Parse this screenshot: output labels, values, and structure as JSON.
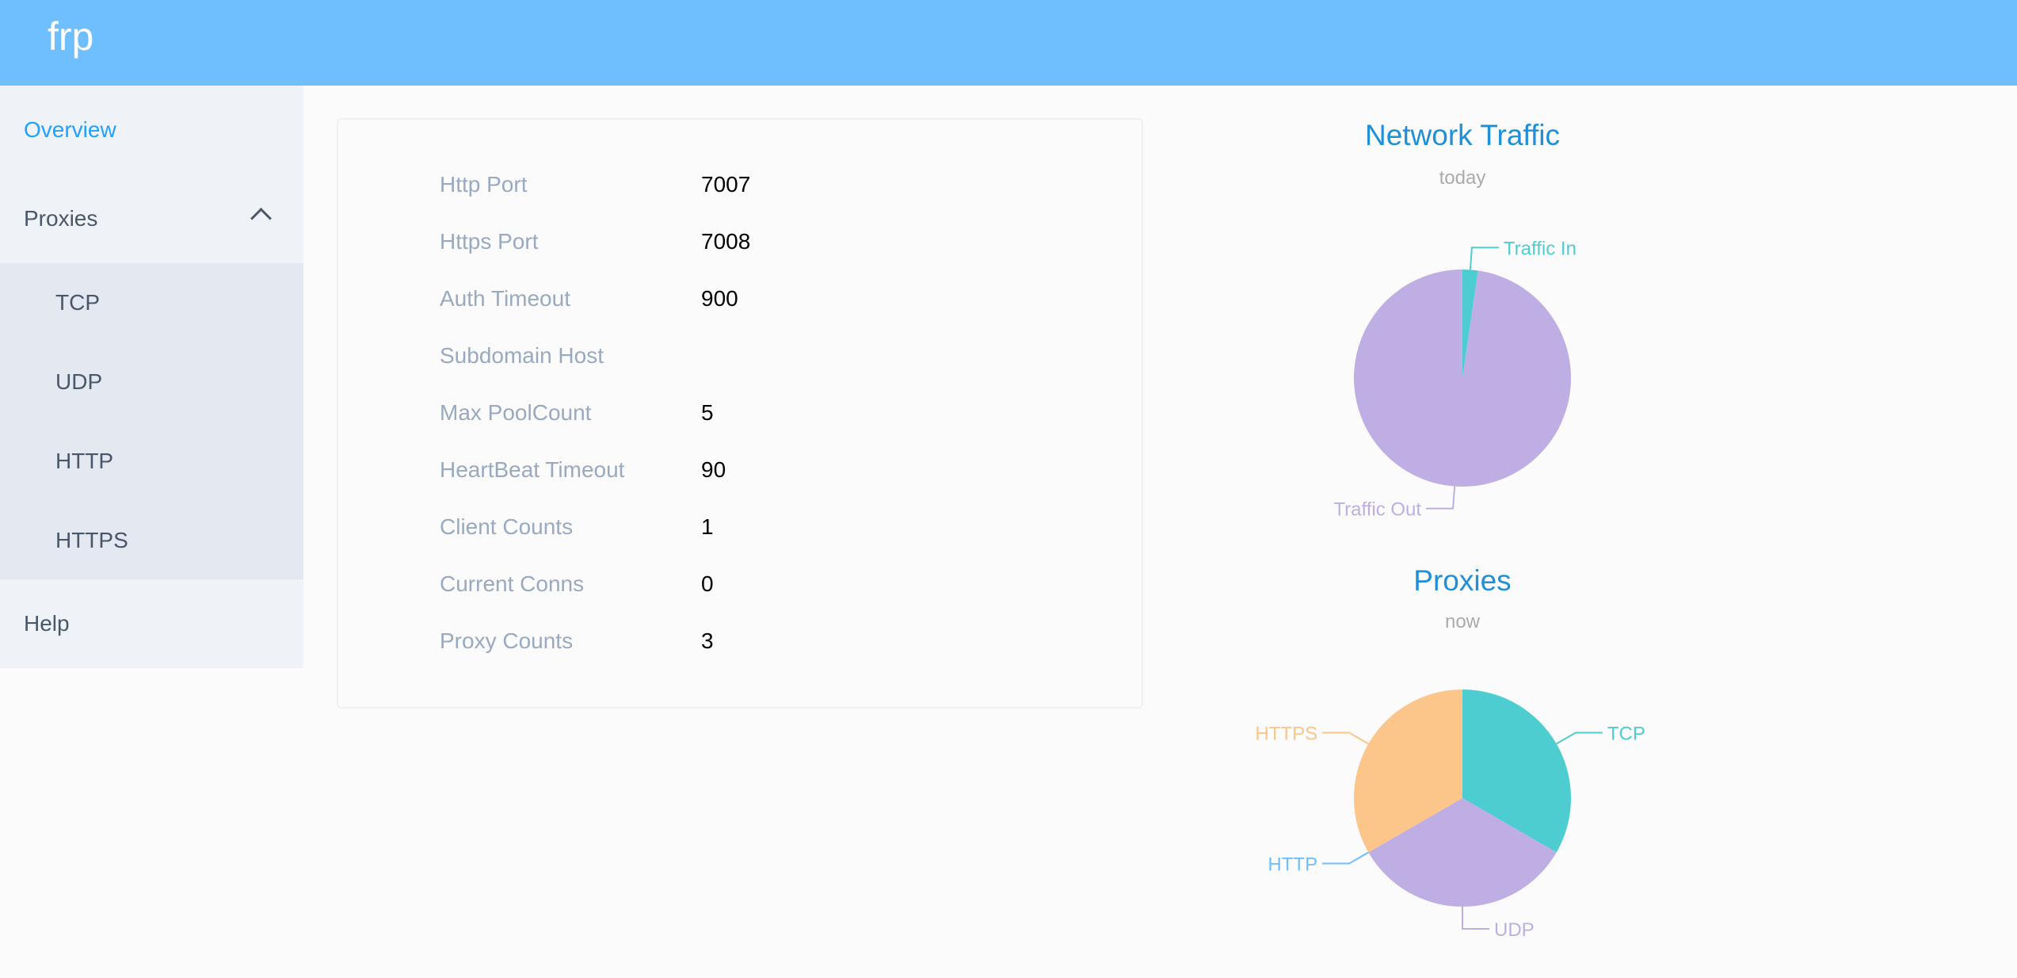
{
  "header": {
    "logo": "frp",
    "color": "#6fbefe"
  },
  "sidebar": {
    "items": [
      {
        "label": "Overview",
        "active": true
      },
      {
        "label": "Proxies",
        "expanded": true,
        "icon": "chevron-up-icon",
        "children": [
          {
            "label": "TCP"
          },
          {
            "label": "UDP"
          },
          {
            "label": "HTTP"
          },
          {
            "label": "HTTPS"
          }
        ]
      },
      {
        "label": "Help"
      }
    ]
  },
  "overview": {
    "rows": [
      {
        "label": "Http Port",
        "value": "7007"
      },
      {
        "label": "Https Port",
        "value": "7008"
      },
      {
        "label": "Auth Timeout",
        "value": "900"
      },
      {
        "label": "Subdomain Host",
        "value": ""
      },
      {
        "label": "Max PoolCount",
        "value": "5"
      },
      {
        "label": "HeartBeat Timeout",
        "value": "90"
      },
      {
        "label": "Client Counts",
        "value": "1"
      },
      {
        "label": "Current Conns",
        "value": "0"
      },
      {
        "label": "Proxy Counts",
        "value": "3"
      }
    ]
  },
  "chart_data": [
    {
      "type": "pie",
      "title": "Network Traffic",
      "subtitle": "today",
      "categories": [
        "Traffic In",
        "Traffic Out"
      ],
      "values": [
        2.3,
        97.7
      ],
      "colors": [
        "#4ecdd1",
        "#bfaee3"
      ]
    },
    {
      "type": "pie",
      "title": "Proxies",
      "subtitle": "now",
      "categories": [
        "TCP",
        "UDP",
        "HTTP",
        "HTTPS"
      ],
      "values": [
        1,
        1,
        0,
        1
      ],
      "colors": [
        "#4ecdd1",
        "#bfaee3",
        "#6fbefe",
        "#fcc58a"
      ]
    }
  ]
}
